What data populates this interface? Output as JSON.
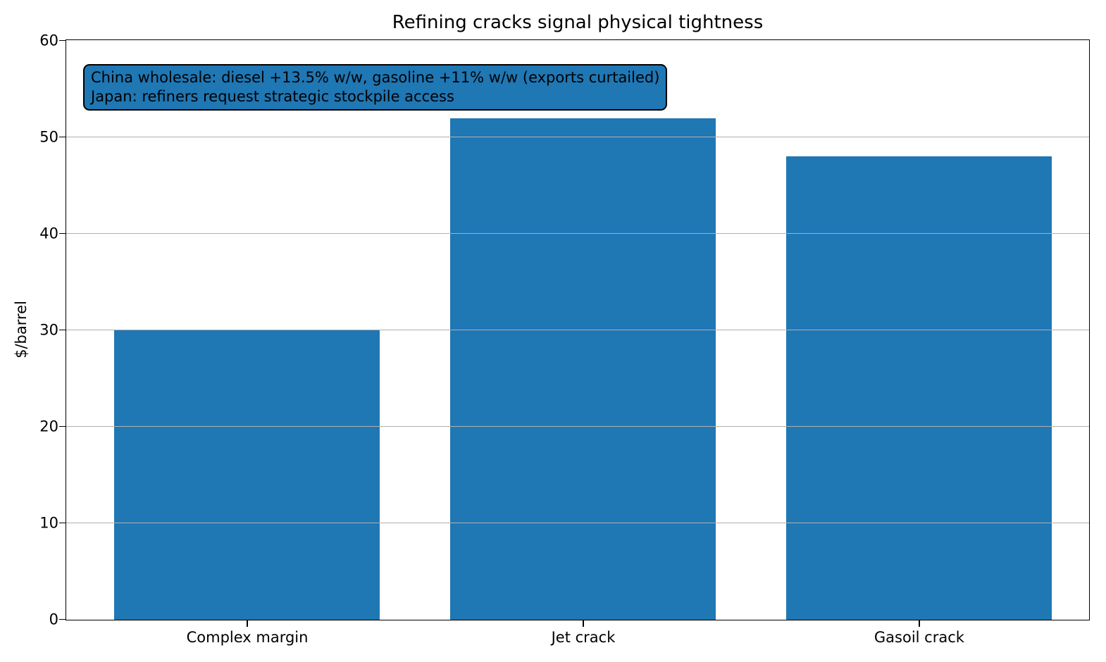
{
  "chart_data": {
    "type": "bar",
    "title": "Refining cracks signal physical tightness",
    "categories": [
      "Complex margin",
      "Jet crack",
      "Gasoil crack"
    ],
    "values": [
      30,
      52,
      48
    ],
    "xlabel": "",
    "ylabel": "$/barrel",
    "ylim": [
      0,
      60
    ],
    "yticks": [
      0,
      10,
      20,
      30,
      40,
      50,
      60
    ],
    "grid": "y-axis horizontal gridlines, drawn above bars",
    "legend": "none",
    "annotations": [
      "China wholesale: diesel +13.5% w/w, gasoline +11% w/w (exports curtailed)",
      "Japan: refiners request strategic stockpile access"
    ]
  },
  "colors": {
    "bar": "#1f77b4",
    "annotation_background": "#1f77b4",
    "annotation_border": "#000000",
    "grid": "#b0b0b0",
    "axis": "#000000",
    "text": "#000000",
    "background": "#ffffff"
  }
}
